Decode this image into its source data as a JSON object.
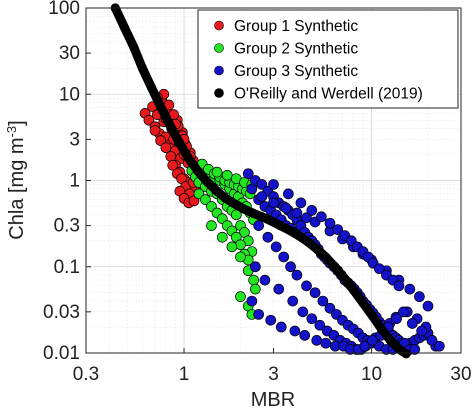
{
  "chart_data": {
    "type": "scatter",
    "x_scale": "log",
    "y_scale": "log",
    "xlim": [
      0.3,
      30
    ],
    "ylim": [
      0.01,
      100
    ],
    "xlabel": "MBR",
    "ylabel": "Chla [mg m",
    "ylabel_superscript": "-3",
    "ylabel_suffix": "]",
    "x_ticks": [
      {
        "value": 0.3,
        "label": "0.3"
      },
      {
        "value": 1,
        "label": "1"
      },
      {
        "value": 3,
        "label": "3"
      },
      {
        "value": 10,
        "label": "10"
      },
      {
        "value": 30,
        "label": "30"
      }
    ],
    "y_ticks": [
      {
        "value": 0.01,
        "label": "0.01"
      },
      {
        "value": 0.03,
        "label": "0.03"
      },
      {
        "value": 0.1,
        "label": "0.1"
      },
      {
        "value": 0.3,
        "label": "0.3"
      },
      {
        "value": 1,
        "label": "1"
      },
      {
        "value": 3,
        "label": "3"
      },
      {
        "value": 10,
        "label": "10"
      },
      {
        "value": 30,
        "label": "30"
      },
      {
        "value": 100,
        "label": "100"
      }
    ],
    "grid": true,
    "legend_position": "top-right",
    "legend": [
      {
        "label": "Group 1 Synthetic",
        "color": "#e8191c"
      },
      {
        "label": "Group 2 Synthetic",
        "color": "#22e622"
      },
      {
        "label": "Group 3 Synthetic",
        "color": "#1512cc"
      },
      {
        "label": "O'Reilly and Werdell (2019)",
        "color": "#000000"
      }
    ],
    "series": [
      {
        "name": "Group 1 Synthetic",
        "color": "#e8191c",
        "x": [
          0.62,
          0.65,
          0.68,
          0.7,
          0.72,
          0.74,
          0.76,
          0.78,
          0.8,
          0.82,
          0.84,
          0.86,
          0.88,
          0.9,
          0.92,
          0.94,
          0.96,
          0.98,
          1.0,
          1.02,
          1.05,
          1.08,
          1.1,
          1.12,
          1.15,
          1.18,
          1.2,
          0.7,
          0.75,
          0.8,
          0.85,
          0.9,
          0.95,
          1.0,
          1.05,
          1.1,
          0.78,
          0.83,
          0.88,
          0.93,
          0.98,
          1.03,
          1.08,
          0.87,
          0.92,
          0.97,
          1.02,
          1.07,
          1.12,
          0.95,
          1.0,
          1.06,
          1.13,
          0.72,
          0.8,
          0.9,
          1.0,
          1.15,
          1.22
        ],
        "y": [
          6.0,
          5.0,
          7.2,
          4.2,
          5.8,
          3.5,
          8.5,
          4.8,
          3.2,
          6.2,
          2.6,
          4.0,
          3.0,
          2.2,
          5.0,
          2.8,
          1.8,
          3.6,
          2.0,
          2.6,
          1.6,
          2.1,
          1.3,
          1.7,
          1.1,
          1.4,
          0.9,
          3.8,
          2.9,
          2.4,
          1.9,
          1.5,
          1.25,
          1.05,
          0.95,
          0.8,
          10.0,
          7.5,
          5.8,
          4.3,
          3.3,
          2.5,
          1.9,
          1.5,
          1.2,
          1.05,
          0.85,
          0.7,
          0.95,
          0.75,
          0.62,
          0.55,
          0.58,
          9.2,
          5.2,
          4.5,
          3.0,
          1.25,
          1.02
        ]
      },
      {
        "name": "Group 2 Synthetic",
        "color": "#22e622",
        "x": [
          1.1,
          1.15,
          1.2,
          1.25,
          1.3,
          1.35,
          1.4,
          1.45,
          1.5,
          1.55,
          1.6,
          1.65,
          1.7,
          1.75,
          1.8,
          1.85,
          1.9,
          1.95,
          2.0,
          2.05,
          2.1,
          2.15,
          2.2,
          2.25,
          2.3,
          2.35,
          2.4,
          1.2,
          1.3,
          1.4,
          1.5,
          1.6,
          1.7,
          1.8,
          1.9,
          2.0,
          2.1,
          2.2,
          1.25,
          1.35,
          1.45,
          1.55,
          1.65,
          1.75,
          1.85,
          1.95,
          2.05,
          2.15,
          2.25,
          1.4,
          1.6,
          1.8,
          2.0,
          2.2,
          2.35,
          1.5,
          1.7,
          1.9,
          2.1,
          2.3,
          2.0,
          2.2,
          2.4,
          2.3
        ],
        "y": [
          1.3,
          1.1,
          0.95,
          1.4,
          0.85,
          1.2,
          0.75,
          1.05,
          0.7,
          1.0,
          0.6,
          0.9,
          0.5,
          0.8,
          0.45,
          0.7,
          0.4,
          0.65,
          0.3,
          0.55,
          0.25,
          0.5,
          0.2,
          0.42,
          0.15,
          0.35,
          0.1,
          0.7,
          0.6,
          0.5,
          0.42,
          0.36,
          0.3,
          0.26,
          0.22,
          0.18,
          0.14,
          0.12,
          1.55,
          1.35,
          1.2,
          1.1,
          1.0,
          0.95,
          0.9,
          0.85,
          0.8,
          0.75,
          0.7,
          0.3,
          0.22,
          0.17,
          0.13,
          0.09,
          0.07,
          1.25,
          1.15,
          1.05,
          0.95,
          0.9,
          0.045,
          0.035,
          0.055,
          0.028
        ]
      },
      {
        "name": "Group 3 Synthetic",
        "color": "#1512cc",
        "x": [
          2.2,
          2.3,
          2.4,
          2.5,
          2.6,
          2.7,
          2.8,
          2.9,
          3.0,
          3.1,
          3.2,
          3.3,
          3.4,
          3.5,
          3.6,
          3.7,
          3.8,
          3.9,
          4.0,
          4.2,
          4.4,
          4.6,
          4.8,
          5.0,
          5.2,
          5.4,
          5.6,
          5.8,
          6.0,
          6.3,
          6.6,
          6.9,
          7.2,
          7.5,
          7.8,
          8.1,
          8.4,
          8.7,
          9.0,
          9.4,
          9.8,
          10.2,
          10.6,
          11.0,
          11.5,
          12.0,
          12.5,
          13.0,
          13.5,
          14.0,
          14.5,
          15.0,
          16.0,
          17.0,
          18.0,
          19.0,
          20.0,
          21.0,
          22.0,
          2.5,
          2.8,
          3.1,
          3.4,
          3.7,
          4.0,
          4.5,
          5.0,
          5.5,
          6.0,
          6.5,
          7.0,
          7.5,
          8.0,
          8.5,
          9.0,
          9.5,
          10.0,
          11.0,
          12.0,
          13.0,
          14.0,
          15.0,
          16.0,
          17.0,
          2.6,
          3.0,
          3.5,
          4.0,
          4.5,
          5.0,
          6.0,
          7.0,
          8.0,
          9.0,
          10.0,
          12.0,
          14.0,
          16.0,
          18.0,
          20.0,
          2.4,
          2.7,
          3.2,
          3.8,
          4.3,
          4.8,
          5.3,
          5.8,
          6.3,
          6.8,
          7.3,
          7.8,
          8.3,
          8.8,
          9.3,
          9.8,
          10.5,
          11.5,
          12.5,
          13.5,
          15.5,
          17.5,
          19.5,
          3.0,
          3.6,
          4.2,
          4.8,
          5.4,
          6.0,
          6.6,
          7.2,
          7.8,
          8.4,
          9.0,
          9.6,
          10.2,
          11.0,
          12.0,
          13.0,
          14.0,
          2.3,
          2.5,
          2.9,
          3.3,
          3.9,
          4.4,
          5.1,
          5.7,
          6.4,
          7.1,
          7.7,
          8.5,
          9.2,
          10.1,
          11.2,
          12.3,
          13.6,
          14.8,
          16.5,
          18.5,
          21.0,
          23.0
        ],
        "y": [
          1.2,
          0.8,
          1.0,
          0.6,
          0.9,
          0.5,
          0.75,
          0.45,
          0.65,
          0.4,
          0.55,
          0.35,
          0.5,
          0.3,
          0.45,
          0.28,
          0.4,
          0.25,
          0.35,
          0.3,
          0.25,
          0.22,
          0.2,
          0.18,
          0.16,
          0.14,
          0.13,
          0.12,
          0.11,
          0.1,
          0.09,
          0.08,
          0.07,
          0.065,
          0.06,
          0.055,
          0.05,
          0.045,
          0.04,
          0.036,
          0.032,
          0.029,
          0.026,
          0.023,
          0.021,
          0.019,
          0.017,
          0.016,
          0.015,
          0.014,
          0.013,
          0.012,
          0.013,
          0.014,
          0.015,
          0.016,
          0.017,
          0.014,
          0.012,
          0.3,
          0.22,
          0.17,
          0.13,
          0.1,
          0.08,
          0.06,
          0.05,
          0.04,
          0.033,
          0.028,
          0.024,
          0.021,
          0.019,
          0.017,
          0.015,
          0.014,
          0.013,
          0.012,
          0.011,
          0.011,
          0.012,
          0.013,
          0.011,
          0.011,
          0.65,
          0.55,
          0.48,
          0.42,
          0.37,
          0.33,
          0.26,
          0.21,
          0.17,
          0.14,
          0.12,
          0.09,
          0.07,
          0.055,
          0.045,
          0.035,
          0.1,
          0.07,
          0.055,
          0.04,
          0.03,
          0.025,
          0.021,
          0.018,
          0.016,
          0.014,
          0.013,
          0.012,
          0.011,
          0.011,
          0.012,
          0.013,
          0.015,
          0.018,
          0.022,
          0.026,
          0.03,
          0.025,
          0.02,
          0.9,
          0.7,
          0.55,
          0.45,
          0.38,
          0.32,
          0.27,
          0.23,
          0.2,
          0.17,
          0.15,
          0.13,
          0.11,
          0.095,
          0.08,
          0.07,
          0.06,
          0.04,
          0.028,
          0.024,
          0.02,
          0.018,
          0.016,
          0.014,
          0.013,
          0.012,
          0.012,
          0.011,
          0.011,
          0.012,
          0.014,
          0.016,
          0.02,
          0.025,
          0.03,
          0.022,
          0.018,
          0.014,
          0.012
        ]
      },
      {
        "name": "O'Reilly and Werdell (2019)",
        "color": "#000000",
        "type": "curve",
        "x": [
          0.43,
          0.48,
          0.54,
          0.6,
          0.67,
          0.75,
          0.84,
          0.94,
          1.05,
          1.18,
          1.32,
          1.48,
          1.65,
          1.85,
          2.07,
          2.32,
          2.6,
          2.91,
          3.26,
          3.65,
          4.08,
          4.57,
          5.12,
          5.73,
          6.42,
          7.19,
          8.05,
          9.01,
          10.1,
          11.3,
          12.6,
          14.1,
          15.3
        ],
        "y": [
          100,
          60,
          35,
          20,
          12,
          7.2,
          4.4,
          2.8,
          1.85,
          1.3,
          0.98,
          0.77,
          0.63,
          0.54,
          0.47,
          0.42,
          0.38,
          0.34,
          0.3,
          0.265,
          0.23,
          0.195,
          0.16,
          0.128,
          0.098,
          0.073,
          0.053,
          0.038,
          0.027,
          0.019,
          0.014,
          0.011,
          0.0098
        ]
      }
    ]
  }
}
